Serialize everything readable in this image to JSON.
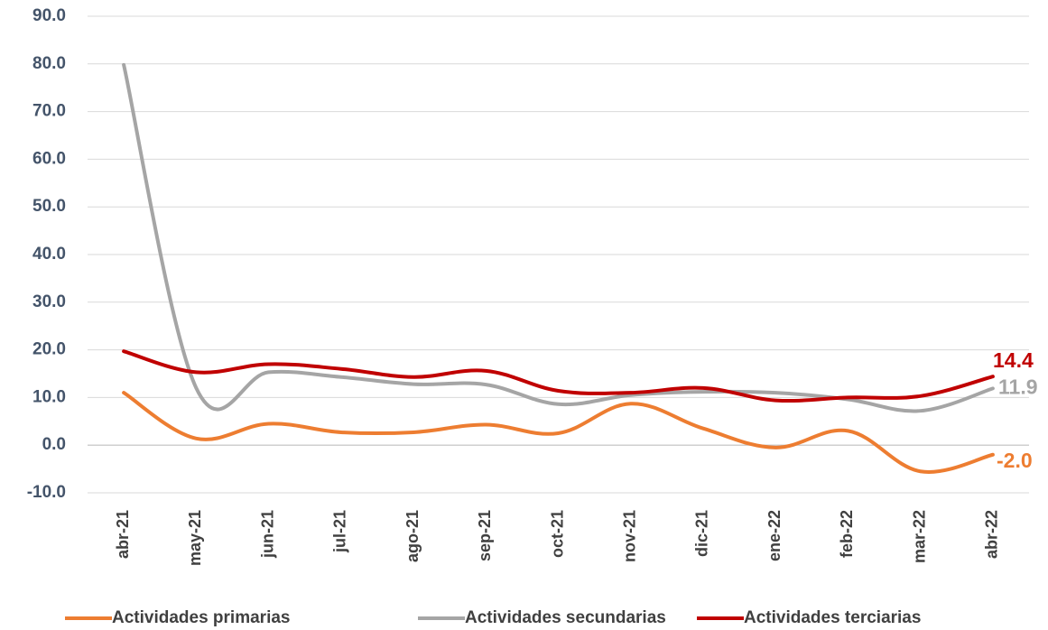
{
  "chart_data": {
    "type": "line",
    "categories": [
      "abr-21",
      "may-21",
      "jun-21",
      "jul-21",
      "ago-21",
      "sep-21",
      "oct-21",
      "nov-21",
      "dic-21",
      "ene-22",
      "feb-22",
      "mar-22",
      "abr-22"
    ],
    "series": [
      {
        "name": "Actividades primarias",
        "color": "#ed7d31",
        "values": [
          11.0,
          1.4,
          4.5,
          2.7,
          2.7,
          4.3,
          2.5,
          8.7,
          3.5,
          -0.5,
          3.0,
          -5.5,
          -2.0
        ],
        "value_labels": [
          null,
          null,
          null,
          null,
          null,
          null,
          null,
          null,
          null,
          null,
          null,
          null,
          "-2.0"
        ]
      },
      {
        "name": "Actividades secundarias",
        "color": "#a5a5a5",
        "values": [
          79.8,
          12.0,
          15.3,
          14.3,
          12.8,
          12.7,
          8.6,
          10.5,
          11.2,
          11.0,
          9.6,
          7.2,
          11.9
        ],
        "value_labels": [
          null,
          null,
          null,
          null,
          null,
          null,
          null,
          null,
          null,
          null,
          null,
          null,
          "11.9"
        ]
      },
      {
        "name": "Actividades terciarias",
        "color": "#c00000",
        "values": [
          19.7,
          15.3,
          17.0,
          16.0,
          14.3,
          15.6,
          11.4,
          11.0,
          12.0,
          9.4,
          10.0,
          10.3,
          14.4
        ],
        "value_labels": [
          null,
          null,
          null,
          null,
          null,
          null,
          null,
          null,
          null,
          null,
          null,
          null,
          "14.4"
        ]
      }
    ],
    "ylim": [
      -10,
      90
    ],
    "yticks": [
      {
        "value": -10,
        "label": "-10.0"
      },
      {
        "value": 0,
        "label": "0.0"
      },
      {
        "value": 10,
        "label": "10.0"
      },
      {
        "value": 20,
        "label": "20.0"
      },
      {
        "value": 30,
        "label": "30.0"
      },
      {
        "value": 40,
        "label": "40.0"
      },
      {
        "value": 50,
        "label": "50.0"
      },
      {
        "value": 60,
        "label": "60.0"
      },
      {
        "value": 70,
        "label": "70.0"
      },
      {
        "value": 80,
        "label": "80.0"
      },
      {
        "value": 90,
        "label": "90.0"
      }
    ],
    "grid": true,
    "legend": "bottom"
  }
}
